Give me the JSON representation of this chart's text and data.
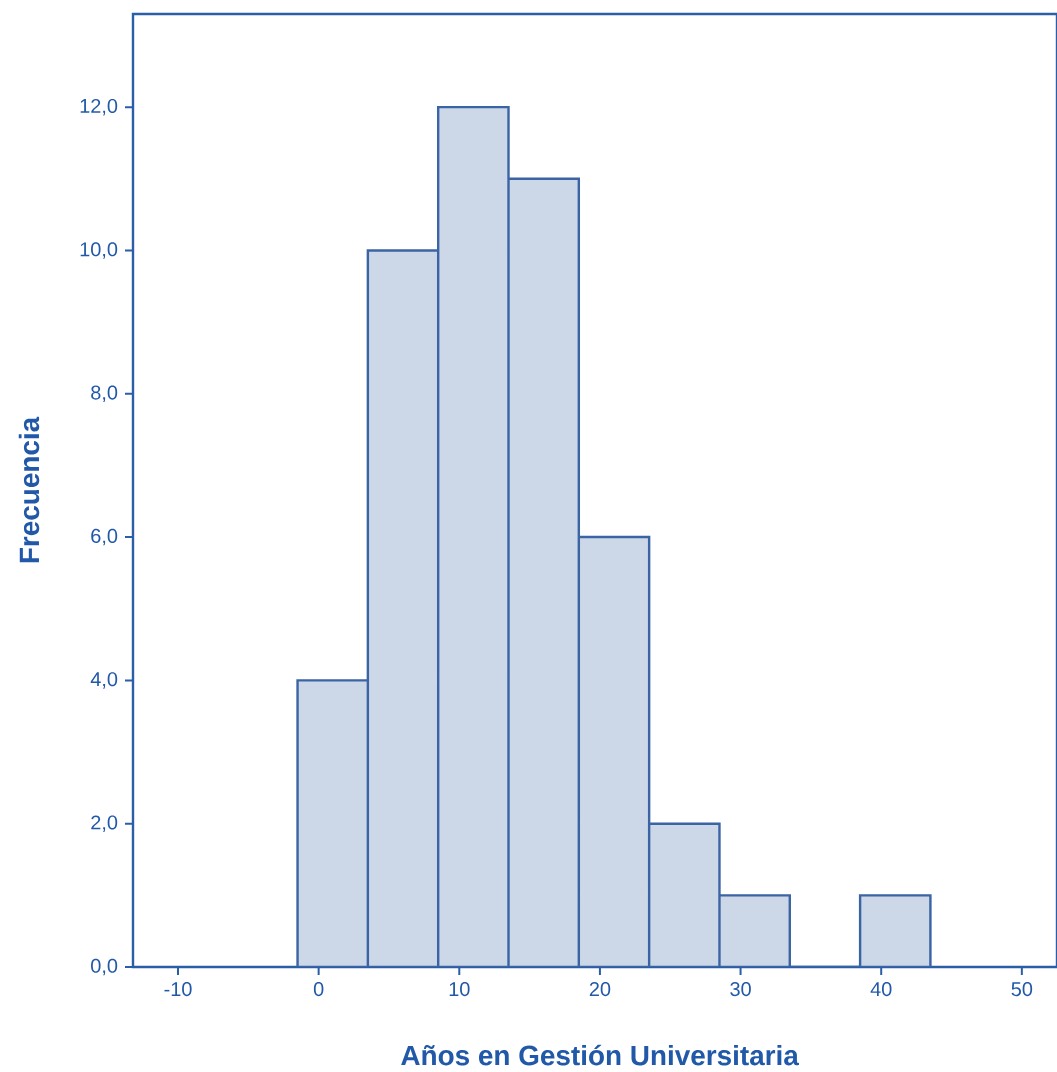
{
  "chart_data": {
    "type": "histogram",
    "xlabel": "Años en Gestión Universitaria",
    "ylabel": "Frecuencia",
    "bins": [
      -1.5,
      3.5,
      8.5,
      13.5,
      18.5,
      23.5,
      28.5,
      33.5,
      38.5,
      43.5
    ],
    "values": [
      4,
      10,
      12,
      11,
      6,
      2,
      1,
      0,
      1
    ],
    "color": "#ccd7e8",
    "xlim": [
      -13.2,
      52.5
    ],
    "ylim": [
      0,
      13.3
    ],
    "xticks": [
      -10,
      0,
      10,
      20,
      30,
      40,
      50
    ],
    "yticks": [
      {
        "value": 0,
        "label": "0,0"
      },
      {
        "value": 2,
        "label": "2,0"
      },
      {
        "value": 4,
        "label": "4,0"
      },
      {
        "value": 6,
        "label": "6,0"
      },
      {
        "value": 8,
        "label": "8,0"
      },
      {
        "value": 10,
        "label": "10,0"
      },
      {
        "value": 12,
        "label": "12,0"
      }
    ]
  }
}
